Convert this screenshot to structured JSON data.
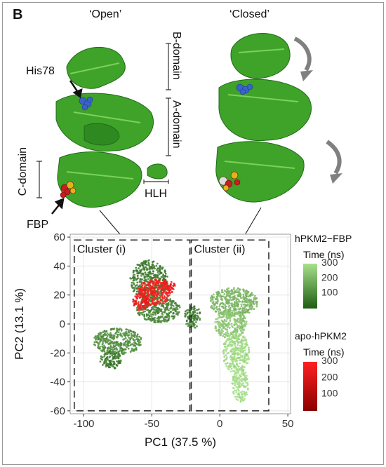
{
  "panel": {
    "letter": "B",
    "open_label": "‘Open’",
    "closed_label": "‘Closed’"
  },
  "structure_labels": {
    "his78": "His78",
    "b_domain": "B-domain",
    "a_domain": "A-domain",
    "c_domain": "C-domain",
    "hlh": "HLH",
    "fbp": "FBP"
  },
  "colors": {
    "protein": "#3fa32a",
    "protein_dark": "#1f6b17",
    "ligand_blue": "#3a63c9",
    "arrow_gray": "#808080",
    "fbp_red": "#c81e1e",
    "fbp_yellow": "#e5b219"
  },
  "chart_data": {
    "type": "scatter",
    "xlabel": "PC1 (37.5 %)",
    "ylabel": "PC2 (13.1 %)",
    "xlim": [
      -110,
      52
    ],
    "ylim": [
      -62,
      62
    ],
    "xticks": [
      -100,
      -50,
      0,
      50
    ],
    "yticks": [
      -60,
      -40,
      -20,
      0,
      20,
      40,
      60
    ],
    "grid": true,
    "clusters": [
      {
        "label": "Cluster (i)",
        "x_range": [
          -107,
          -22
        ],
        "y_range": [
          -60,
          58
        ]
      },
      {
        "label": "Cluster (ii)",
        "x_range": [
          -21,
          36
        ],
        "y_range": [
          -60,
          58
        ]
      }
    ],
    "series": [
      {
        "name": "hPKM2−FBP",
        "color_scale_title": "Time (ns)",
        "color_low": "#1f5d13",
        "color_high": "#a8e08b",
        "scale_ticks": [
          100,
          200,
          300
        ],
        "blobs": [
          {
            "cx": -52,
            "cy": 30,
            "rx": 14,
            "ry": 14,
            "t": 70
          },
          {
            "cx": -45,
            "cy": 10,
            "rx": 16,
            "ry": 9,
            "t": 90
          },
          {
            "cx": -75,
            "cy": -12,
            "rx": 18,
            "ry": 9,
            "t": 110
          },
          {
            "cx": -80,
            "cy": -25,
            "rx": 8,
            "ry": 6,
            "t": 60
          },
          {
            "cx": -20,
            "cy": 5,
            "rx": 6,
            "ry": 8,
            "t": 80
          },
          {
            "cx": 10,
            "cy": 15,
            "rx": 18,
            "ry": 10,
            "t": 200
          },
          {
            "cx": 8,
            "cy": 0,
            "rx": 12,
            "ry": 10,
            "t": 240
          },
          {
            "cx": 12,
            "cy": -20,
            "rx": 10,
            "ry": 14,
            "t": 290
          },
          {
            "cx": 15,
            "cy": -42,
            "rx": 6,
            "ry": 12,
            "t": 300
          }
        ]
      },
      {
        "name": "apo-hPKM2",
        "color_scale_title": "Time (ns)",
        "color_low": "#8a0000",
        "color_high": "#ff2020",
        "scale_ticks": [
          100,
          200,
          300
        ],
        "blobs": [
          {
            "cx": -48,
            "cy": 22,
            "rx": 12,
            "ry": 9,
            "t": 280
          },
          {
            "cx": -58,
            "cy": 15,
            "rx": 6,
            "ry": 6,
            "t": 250
          },
          {
            "cx": -38,
            "cy": 26,
            "rx": 5,
            "ry": 5,
            "t": 260
          }
        ]
      }
    ]
  }
}
